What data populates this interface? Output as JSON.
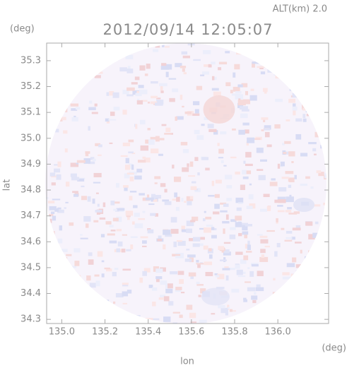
{
  "chart_data": {
    "type": "radar-map",
    "title": "2012/09/14 12:05:07",
    "annotation": "ALT(km) 2.0",
    "xlabel": "lon",
    "ylabel": "lat",
    "xunit": "(deg)",
    "yunit": "(deg)",
    "xlim": [
      134.93,
      136.235
    ],
    "ylim": [
      34.284,
      35.368
    ],
    "xticks": [
      {
        "value": 135.0,
        "label": "135.0"
      },
      135.2,
      135.4,
      135.6,
      135.8,
      {
        "value": 136.0,
        "label": "136.0"
      }
    ],
    "yticks": [
      34.3,
      34.4,
      34.5,
      34.6,
      34.7,
      34.8,
      34.9,
      {
        "value": 35.0,
        "label": "35.0"
      },
      35.1,
      35.2,
      35.3
    ]
  }
}
